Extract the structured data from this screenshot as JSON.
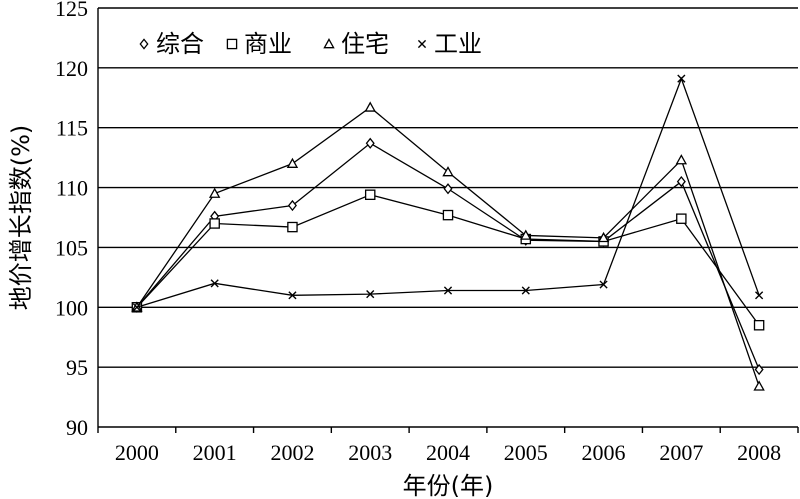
{
  "chart_data": {
    "type": "line",
    "categories": [
      "2000",
      "2001",
      "2002",
      "2003",
      "2004",
      "2005",
      "2006",
      "2007",
      "2008"
    ],
    "xlabel": "年份(年)",
    "ylabel": "地价增长指数(%)",
    "ylim": [
      90,
      125
    ],
    "yticks": [
      90,
      95,
      100,
      105,
      110,
      115,
      120,
      125
    ],
    "grid": true,
    "legend_position": "top-left",
    "series": [
      {
        "name": "综合",
        "marker": "diamond",
        "values": [
          100,
          107.6,
          108.5,
          113.7,
          109.9,
          105.6,
          105.5,
          110.5,
          94.8
        ]
      },
      {
        "name": "商业",
        "marker": "square",
        "values": [
          100,
          107.0,
          106.7,
          109.4,
          107.7,
          105.7,
          105.5,
          107.4,
          98.5
        ]
      },
      {
        "name": "住宅",
        "marker": "triangle",
        "values": [
          100,
          109.5,
          112.0,
          116.7,
          111.3,
          106.0,
          105.8,
          112.3,
          93.4
        ]
      },
      {
        "name": "工业",
        "marker": "cross",
        "values": [
          100,
          102.0,
          101.0,
          101.1,
          101.4,
          101.4,
          101.9,
          119.1,
          101.0
        ]
      }
    ]
  }
}
